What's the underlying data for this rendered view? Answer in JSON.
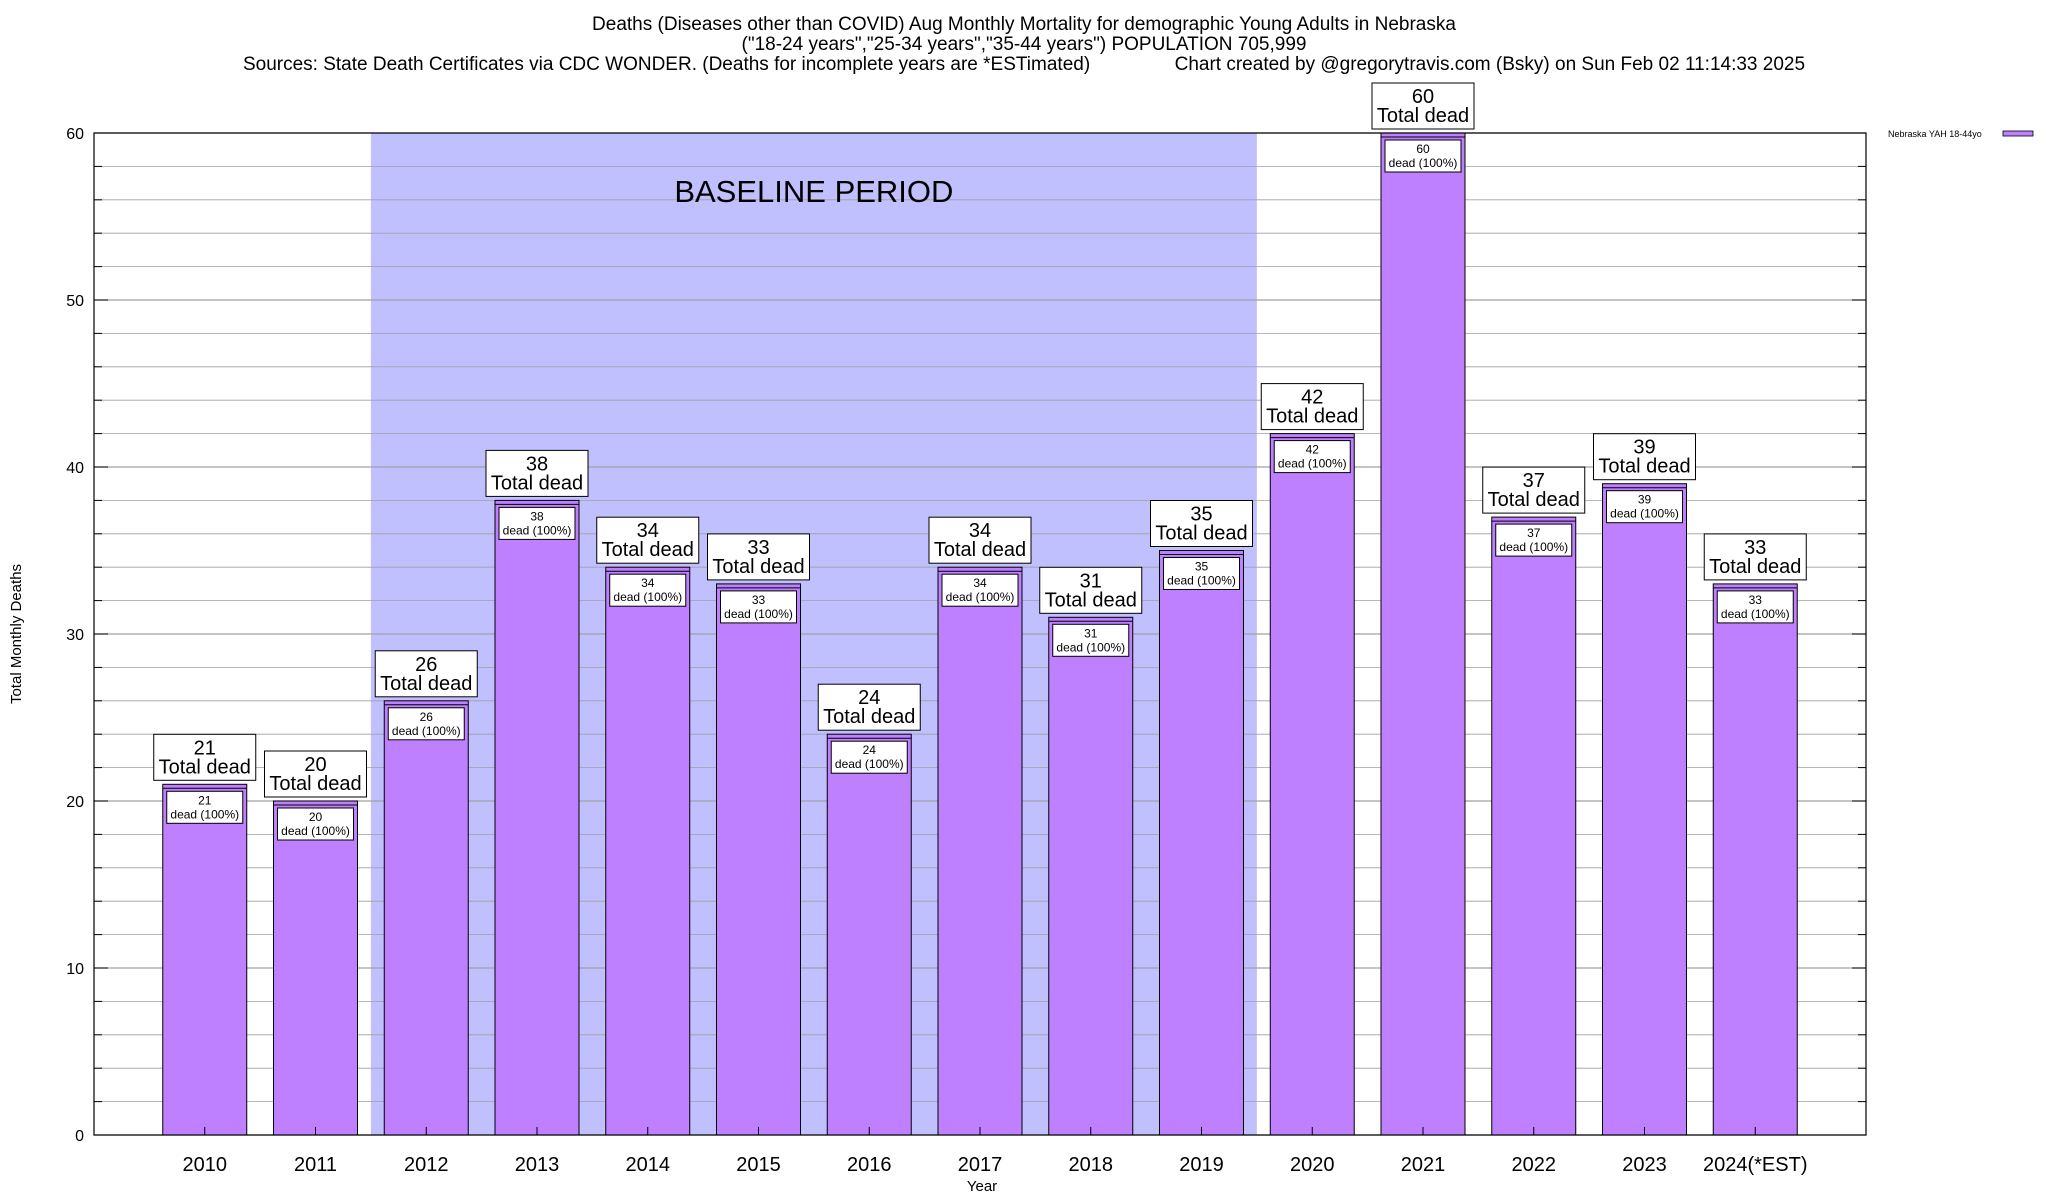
{
  "header": {
    "title_line1": "Deaths (Diseases other than COVID) Aug Monthly Mortality for demographic Young Adults in Nebraska",
    "title_line2": "(\"18-24 years\",\"25-34 years\",\"35-44 years\") POPULATION 705,999",
    "title_line3": "Sources: State Death Certificates via CDC WONDER. (Deaths for incomplete years are *ESTimated)                Chart created by @gregorytravis.com (Bsky) on Sun Feb 02 11:14:33 2025"
  },
  "colors": {
    "bar_fill": "#bf80ff",
    "baseline_band": "#c0c0ff",
    "grid": "#a0a0a0",
    "axis": "#000000"
  },
  "chart_data": {
    "type": "bar",
    "title": "Deaths (Diseases other than COVID) Aug Monthly Mortality for demographic Young Adults in Nebraska",
    "xlabel": "Year",
    "ylabel": "Total Monthly Deaths",
    "ylim": [
      0,
      60
    ],
    "yticks": [
      0,
      10,
      20,
      30,
      40,
      50,
      60
    ],
    "grid": true,
    "legend": {
      "position": "top-right",
      "entries": [
        "Nebraska YAH 18-44yo"
      ]
    },
    "categories": [
      "2010",
      "2011",
      "2012",
      "2013",
      "2014",
      "2015",
      "2016",
      "2017",
      "2018",
      "2019",
      "2020",
      "2021",
      "2022",
      "2023",
      "2024(*EST)"
    ],
    "series": [
      {
        "name": "Nebraska YAH 18-44yo",
        "values": [
          21,
          20,
          26,
          38,
          34,
          33,
          24,
          34,
          31,
          35,
          42,
          60,
          37,
          39,
          33
        ]
      }
    ],
    "total_label": "Total dead",
    "inner_label": "dead (100%)",
    "annotation": {
      "text": "BASELINE PERIOD",
      "from_category": "2012",
      "to_category": "2019"
    }
  }
}
